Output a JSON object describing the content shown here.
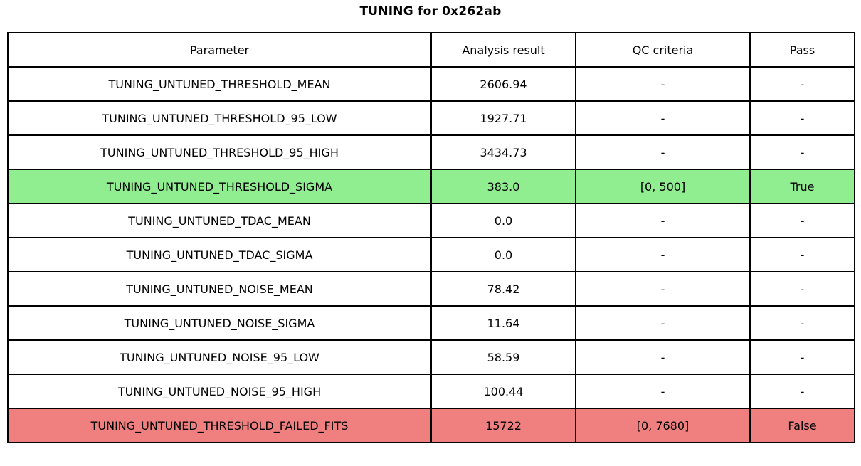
{
  "title": "TUNING for 0x262ab",
  "chart_data": {
    "type": "table",
    "title": "TUNING for 0x262ab",
    "columns": [
      "Parameter",
      "Analysis result",
      "QC criteria",
      "Pass"
    ],
    "rows": [
      {
        "cells": [
          "TUNING_UNTUNED_THRESHOLD_MEAN",
          "2606.94",
          "-",
          "-"
        ],
        "status": "none"
      },
      {
        "cells": [
          "TUNING_UNTUNED_THRESHOLD_95_LOW",
          "1927.71",
          "-",
          "-"
        ],
        "status": "none"
      },
      {
        "cells": [
          "TUNING_UNTUNED_THRESHOLD_95_HIGH",
          "3434.73",
          "-",
          "-"
        ],
        "status": "none"
      },
      {
        "cells": [
          "TUNING_UNTUNED_THRESHOLD_SIGMA",
          "383.0",
          "[0, 500]",
          "True"
        ],
        "status": "pass"
      },
      {
        "cells": [
          "TUNING_UNTUNED_TDAC_MEAN",
          "0.0",
          "-",
          "-"
        ],
        "status": "none"
      },
      {
        "cells": [
          "TUNING_UNTUNED_TDAC_SIGMA",
          "0.0",
          "-",
          "-"
        ],
        "status": "none"
      },
      {
        "cells": [
          "TUNING_UNTUNED_NOISE_MEAN",
          "78.42",
          "-",
          "-"
        ],
        "status": "none"
      },
      {
        "cells": [
          "TUNING_UNTUNED_NOISE_SIGMA",
          "11.64",
          "-",
          "-"
        ],
        "status": "none"
      },
      {
        "cells": [
          "TUNING_UNTUNED_NOISE_95_LOW",
          "58.59",
          "-",
          "-"
        ],
        "status": "none"
      },
      {
        "cells": [
          "TUNING_UNTUNED_NOISE_95_HIGH",
          "100.44",
          "-",
          "-"
        ],
        "status": "none"
      },
      {
        "cells": [
          "TUNING_UNTUNED_THRESHOLD_FAILED_FITS",
          "15722",
          "[0, 7680]",
          "False"
        ],
        "status": "fail"
      }
    ]
  },
  "colors": {
    "pass_row": "#90ee90",
    "fail_row": "#f08080",
    "normal_row": "#ffffff",
    "border": "#000000",
    "text": "#000000",
    "background": "#ffffff"
  }
}
